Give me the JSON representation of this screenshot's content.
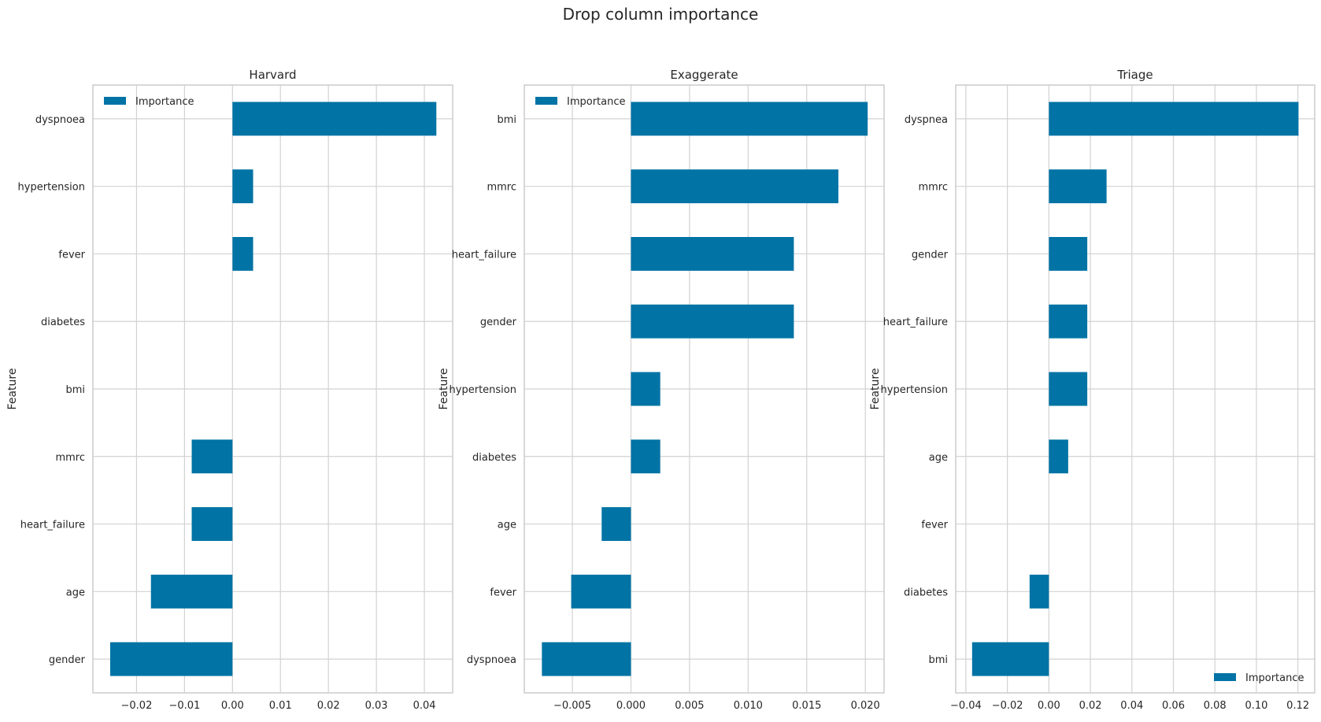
{
  "figure": {
    "title": "Drop column importance"
  },
  "chart_data": [
    {
      "type": "bar",
      "orientation": "horizontal",
      "title": "Harvard",
      "xlabel": "",
      "ylabel": "Feature",
      "categories": [
        "dyspnoea",
        "hypertension",
        "fever",
        "diabetes",
        "bmi",
        "mmrc",
        "heart_failure",
        "age",
        "gender"
      ],
      "series": [
        {
          "name": "Importance",
          "values": [
            0.0425,
            0.0043,
            0.0043,
            0.0,
            0.0,
            -0.0085,
            -0.0085,
            -0.017,
            -0.0255
          ]
        }
      ],
      "xlim": [
        -0.0291,
        0.0459
      ],
      "xticks": [
        -0.02,
        -0.01,
        0.0,
        0.01,
        0.02,
        0.03,
        0.04
      ],
      "xtick_labels": [
        "−0.02",
        "−0.01",
        "0.00",
        "0.01",
        "0.02",
        "0.03",
        "0.04"
      ],
      "legend": "upper left",
      "grid": true
    },
    {
      "type": "bar",
      "orientation": "horizontal",
      "title": "Exaggerate",
      "xlabel": "",
      "ylabel": "Feature",
      "categories": [
        "bmi",
        "mmrc",
        "heart_failure",
        "gender",
        "hypertension",
        "diabetes",
        "age",
        "fever",
        "dyspnoea"
      ],
      "series": [
        {
          "name": "Importance",
          "values": [
            0.0202,
            0.0177,
            0.0139,
            0.0139,
            0.0025,
            0.0025,
            -0.0025,
            -0.0051,
            -0.0076
          ]
        }
      ],
      "xlim": [
        -0.0091,
        0.0216
      ],
      "xticks": [
        -0.005,
        0.0,
        0.005,
        0.01,
        0.015,
        0.02
      ],
      "xtick_labels": [
        "−0.005",
        "0.000",
        "0.005",
        "0.010",
        "0.015",
        "0.020"
      ],
      "legend": "upper left",
      "grid": true
    },
    {
      "type": "bar",
      "orientation": "horizontal",
      "title": "Triage",
      "xlabel": "",
      "ylabel": "Feature",
      "categories": [
        "dyspnea",
        "mmrc",
        "gender",
        "heart_failure",
        "hypertension",
        "age",
        "fever",
        "diabetes",
        "bmi"
      ],
      "series": [
        {
          "name": "Importance",
          "values": [
            0.1203,
            0.0278,
            0.0185,
            0.0185,
            0.0185,
            0.0093,
            0.0,
            -0.0093,
            -0.037
          ]
        }
      ],
      "xlim": [
        -0.0449,
        0.1281
      ],
      "xticks": [
        -0.04,
        -0.02,
        0.0,
        0.02,
        0.04,
        0.06,
        0.08,
        0.1,
        0.12
      ],
      "xtick_labels": [
        "−0.04",
        "−0.02",
        "0.00",
        "0.02",
        "0.04",
        "0.06",
        "0.08",
        "0.10",
        "0.12"
      ],
      "legend": "lower right",
      "grid": true
    }
  ],
  "colors": {
    "bar": "#0173a5",
    "grid": "#d2d2d2",
    "spine": "#cccccc",
    "text": "#262626"
  }
}
